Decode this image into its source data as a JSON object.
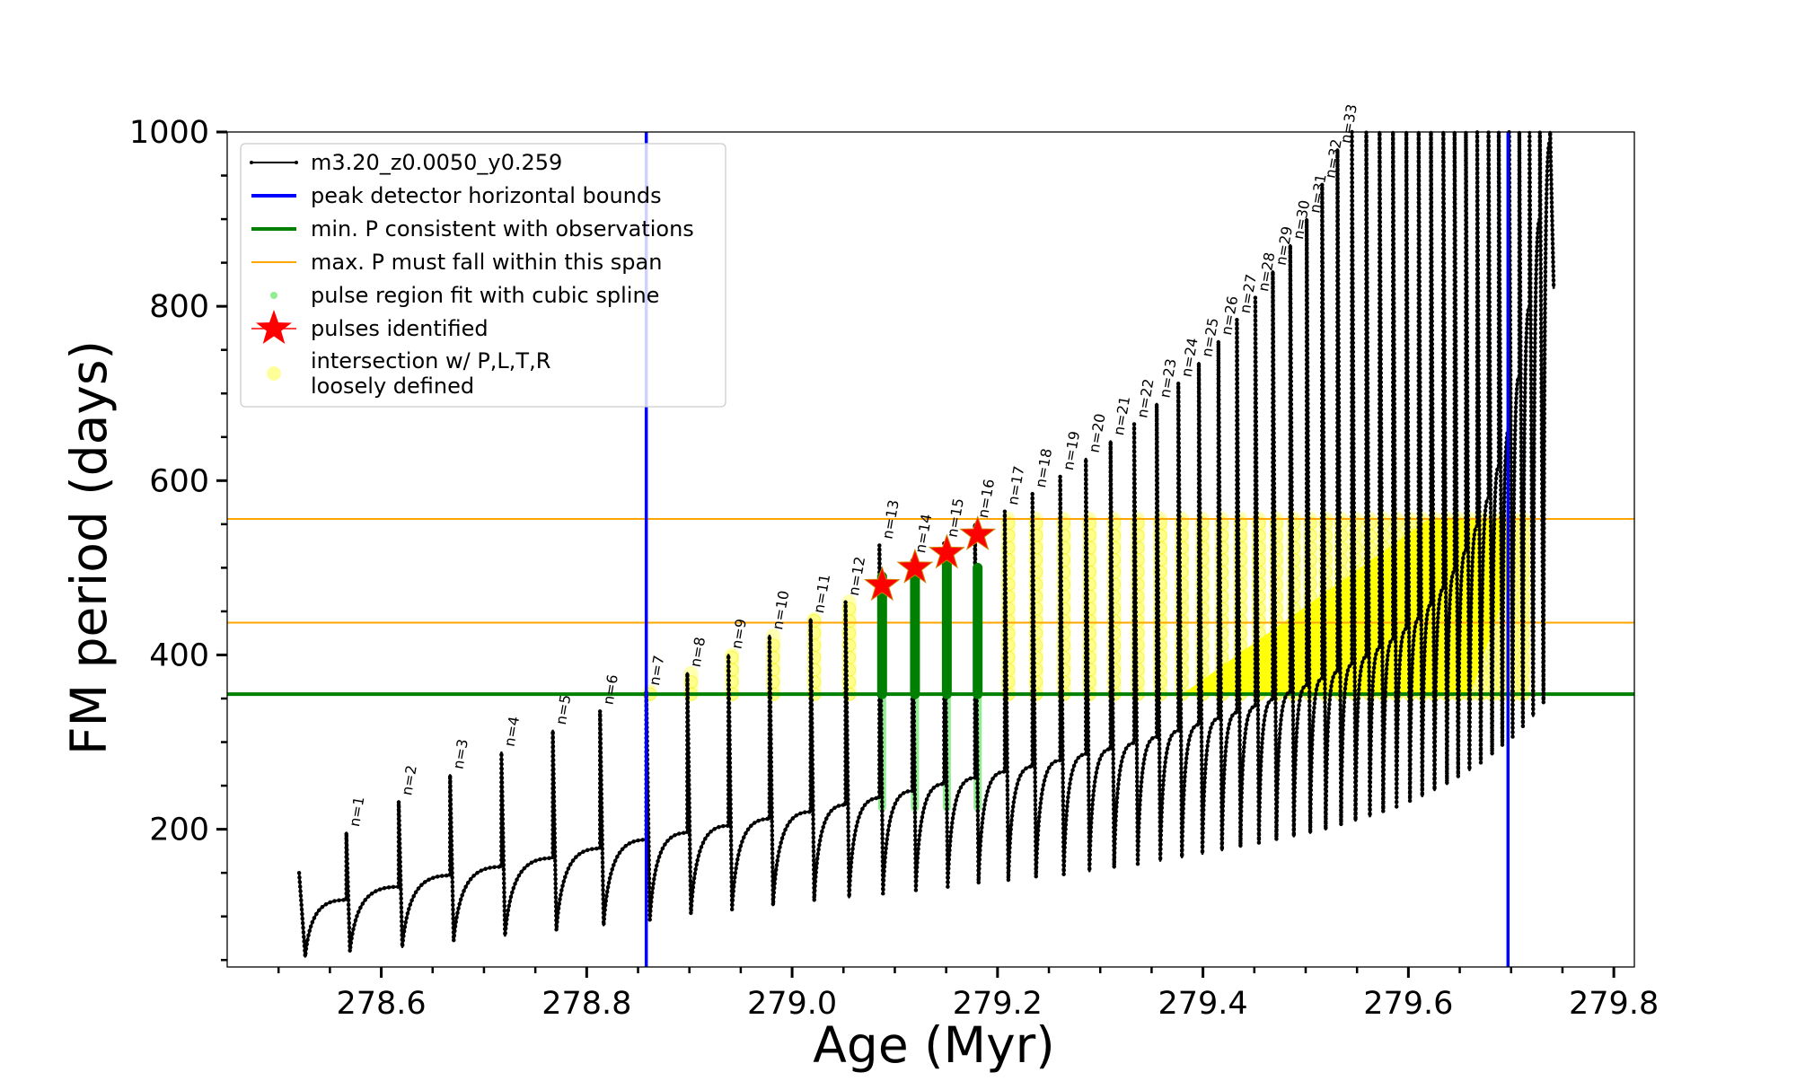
{
  "chart_data": {
    "type": "scatter",
    "title": "",
    "xlabel": "Age (Myr)",
    "ylabel": "FM period (days)",
    "xlim": [
      278.45,
      279.82
    ],
    "ylim": [
      42,
      1000
    ],
    "x_ticks": [
      278.6,
      278.8,
      279.0,
      279.2,
      279.4,
      279.6,
      279.8
    ],
    "x_tick_labels": [
      "278.6",
      "278.8",
      "279.0",
      "279.2",
      "279.4",
      "279.6",
      "279.8"
    ],
    "y_ticks": [
      200,
      400,
      600,
      800,
      1000
    ],
    "y_tick_labels": [
      "200",
      "400",
      "600",
      "800",
      "1000"
    ],
    "grid": false,
    "legend_position": "top-left",
    "legend": [
      {
        "label": "m3.20_z0.0050_y0.259",
        "marker": "line-dot",
        "color": "#000000"
      },
      {
        "label": "peak detector horizontal bounds",
        "marker": "line",
        "color": "#0000ff"
      },
      {
        "label": "min. P consistent with observations",
        "marker": "line",
        "color": "#008000"
      },
      {
        "label": "max. P must fall within this span",
        "marker": "thin-line",
        "color": "#ffa500"
      },
      {
        "label": "pulse region fit with cubic spline",
        "marker": "dot",
        "color": "#90ee90"
      },
      {
        "label": "pulses identified",
        "marker": "star",
        "color": "#ff0000"
      },
      {
        "label": "intersection w/ P,L,T,R",
        "label2": "loosely defined",
        "marker": "big-dot",
        "color": "#ffff99"
      }
    ],
    "vertical_lines": [
      {
        "x": 278.858,
        "color": "#0000ff",
        "series": "peak detector horizontal bounds"
      },
      {
        "x": 279.697,
        "color": "#0000ff",
        "series": "peak detector horizontal bounds"
      }
    ],
    "horizontal_lines": [
      {
        "y": 355,
        "color": "#008000",
        "series": "min. P consistent with observations"
      },
      {
        "y": 437,
        "color": "#ffa500",
        "series": "max. P must fall within this span"
      },
      {
        "y": 556,
        "color": "#ffa500",
        "series": "max. P must fall within this span"
      }
    ],
    "pulses": [
      {
        "n": 1,
        "label": "n=1",
        "x": 278.566,
        "peak": 196,
        "pre": 119,
        "base": 60
      },
      {
        "n": 2,
        "label": "n=2",
        "x": 278.617,
        "peak": 232,
        "pre": 134,
        "base": 65
      },
      {
        "n": 3,
        "label": "n=3",
        "x": 278.667,
        "peak": 262,
        "pre": 147,
        "base": 72
      },
      {
        "n": 4,
        "label": "n=4",
        "x": 278.717,
        "peak": 288,
        "pre": 157,
        "base": 78
      },
      {
        "n": 5,
        "label": "n=5",
        "x": 278.767,
        "peak": 313,
        "pre": 167,
        "base": 84
      },
      {
        "n": 6,
        "label": "n=6",
        "x": 278.813,
        "peak": 336,
        "pre": 178,
        "base": 90
      },
      {
        "n": 7,
        "label": "n=7",
        "x": 278.858,
        "peak": 358,
        "pre": 188,
        "base": 96
      },
      {
        "n": 8,
        "label": "n=8",
        "x": 278.898,
        "peak": 379,
        "pre": 196,
        "base": 103
      },
      {
        "n": 9,
        "label": "n=9",
        "x": 278.938,
        "peak": 400,
        "pre": 204,
        "base": 108
      },
      {
        "n": 10,
        "label": "n=10",
        "x": 278.978,
        "peak": 422,
        "pre": 212,
        "base": 113
      },
      {
        "n": 11,
        "label": "n=11",
        "x": 279.018,
        "peak": 441,
        "pre": 220,
        "base": 118
      },
      {
        "n": 12,
        "label": "n=12",
        "x": 279.052,
        "peak": 461,
        "pre": 228,
        "base": 122
      },
      {
        "n": 13,
        "label": "n=13",
        "x": 279.085,
        "peak": 526,
        "pre": 236,
        "base": 126
      },
      {
        "n": 14,
        "label": "n=14",
        "x": 279.117,
        "peak": 510,
        "pre": 244,
        "base": 130
      },
      {
        "n": 15,
        "label": "n=15",
        "x": 279.148,
        "peak": 528,
        "pre": 252,
        "base": 134
      },
      {
        "n": 16,
        "label": "n=16",
        "x": 279.178,
        "peak": 550,
        "pre": 259,
        "base": 138
      },
      {
        "n": 17,
        "label": "n=17",
        "x": 279.207,
        "peak": 565,
        "pre": 266,
        "base": 141
      },
      {
        "n": 18,
        "label": "n=18",
        "x": 279.234,
        "peak": 585,
        "pre": 272,
        "base": 145
      },
      {
        "n": 19,
        "label": "n=19",
        "x": 279.261,
        "peak": 605,
        "pre": 279,
        "base": 148
      },
      {
        "n": 20,
        "label": "n=20",
        "x": 279.286,
        "peak": 625,
        "pre": 286,
        "base": 152
      },
      {
        "n": 21,
        "label": "n=21",
        "x": 279.31,
        "peak": 645,
        "pre": 292,
        "base": 156
      },
      {
        "n": 22,
        "label": "n=22",
        "x": 279.333,
        "peak": 665,
        "pre": 299,
        "base": 160
      },
      {
        "n": 23,
        "label": "n=23",
        "x": 279.355,
        "peak": 688,
        "pre": 306,
        "base": 164
      },
      {
        "n": 24,
        "label": "n=24",
        "x": 279.376,
        "peak": 712,
        "pre": 313,
        "base": 168
      },
      {
        "n": 25,
        "label": "n=25",
        "x": 279.396,
        "peak": 735,
        "pre": 320,
        "base": 172
      },
      {
        "n": 26,
        "label": "n=26",
        "x": 279.415,
        "peak": 760,
        "pre": 327,
        "base": 176
      },
      {
        "n": 27,
        "label": "n=27",
        "x": 279.433,
        "peak": 785,
        "pre": 334,
        "base": 180
      },
      {
        "n": 28,
        "label": "n=28",
        "x": 279.451,
        "peak": 810,
        "pre": 341,
        "base": 184
      },
      {
        "n": 29,
        "label": "n=29",
        "x": 279.468,
        "peak": 840,
        "pre": 349,
        "base": 188
      },
      {
        "n": 30,
        "label": "n=30",
        "x": 279.485,
        "peak": 870,
        "pre": 357,
        "base": 192
      },
      {
        "n": 31,
        "label": "n=31",
        "x": 279.501,
        "peak": 900,
        "pre": 365,
        "base": 196
      },
      {
        "n": 32,
        "label": "n=32",
        "x": 279.516,
        "peak": 940,
        "pre": 373,
        "base": 200
      },
      {
        "n": 33,
        "label": "n=33",
        "x": 279.531,
        "peak": 980,
        "pre": 381,
        "base": 205
      },
      {
        "n": 34,
        "label": "",
        "x": 279.545,
        "peak": 1000,
        "pre": 389,
        "base": 210
      },
      {
        "n": 35,
        "label": "",
        "x": 279.559,
        "peak": 1000,
        "pre": 398,
        "base": 215
      },
      {
        "n": 36,
        "label": "",
        "x": 279.572,
        "peak": 1000,
        "pre": 408,
        "base": 220
      },
      {
        "n": 37,
        "label": "",
        "x": 279.585,
        "peak": 1000,
        "pre": 418,
        "base": 226
      },
      {
        "n": 38,
        "label": "",
        "x": 279.598,
        "peak": 1000,
        "pre": 430,
        "base": 232
      },
      {
        "n": 39,
        "label": "",
        "x": 279.61,
        "peak": 1000,
        "pre": 442,
        "base": 238
      },
      {
        "n": 40,
        "label": "",
        "x": 279.622,
        "peak": 1000,
        "pre": 458,
        "base": 245
      },
      {
        "n": 41,
        "label": "",
        "x": 279.634,
        "peak": 1000,
        "pre": 476,
        "base": 252
      },
      {
        "n": 42,
        "label": "",
        "x": 279.645,
        "peak": 1000,
        "pre": 496,
        "base": 260
      },
      {
        "n": 43,
        "label": "",
        "x": 279.656,
        "peak": 1000,
        "pre": 520,
        "base": 268
      },
      {
        "n": 44,
        "label": "",
        "x": 279.667,
        "peak": 1000,
        "pre": 548,
        "base": 276
      },
      {
        "n": 45,
        "label": "",
        "x": 279.678,
        "peak": 1000,
        "pre": 580,
        "base": 286
      },
      {
        "n": 46,
        "label": "",
        "x": 279.688,
        "peak": 1000,
        "pre": 616,
        "base": 296
      },
      {
        "n": 47,
        "label": "",
        "x": 279.698,
        "peak": 1000,
        "pre": 660,
        "base": 306
      },
      {
        "n": 48,
        "label": "",
        "x": 279.708,
        "peak": 1000,
        "pre": 720,
        "base": 318
      },
      {
        "n": 49,
        "label": "",
        "x": 279.718,
        "peak": 1000,
        "pre": 800,
        "base": 330
      },
      {
        "n": 50,
        "label": "",
        "x": 279.728,
        "peak": 1000,
        "pre": 900,
        "base": 345
      },
      {
        "n": 51,
        "label": "",
        "x": 279.738,
        "peak": 1000,
        "pre": 990,
        "base": 820
      }
    ],
    "track_start": {
      "x": 278.52,
      "y": 150
    },
    "track_start_base": {
      "x": 278.526,
      "y": 54
    },
    "track_end": {
      "x": 279.738,
      "y": 1000
    },
    "pulses_identified": [
      {
        "n": 13,
        "x": 279.085,
        "y": 480
      },
      {
        "n": 14,
        "x": 279.117,
        "y": 500
      },
      {
        "n": 15,
        "x": 279.148,
        "y": 517
      },
      {
        "n": 16,
        "x": 279.178,
        "y": 538
      }
    ],
    "spline_fit_pulses": [
      {
        "n": 13,
        "x": 279.085,
        "ymin": 225,
        "ymax": 490
      },
      {
        "n": 14,
        "x": 279.117,
        "ymin": 225,
        "ymax": 500
      },
      {
        "n": 15,
        "x": 279.148,
        "ymin": 225,
        "ymax": 505
      },
      {
        "n": 16,
        "x": 279.178,
        "ymin": 225,
        "ymax": 500
      }
    ],
    "yellow_region": {
      "columns_pulse_range": [
        7,
        48
      ],
      "ymin": 355,
      "ymax": 556,
      "dense_wedge": [
        [
          279.38,
          355
        ],
        [
          279.62,
          556
        ],
        [
          279.697,
          556
        ],
        [
          279.697,
          480
        ],
        [
          279.66,
          355
        ]
      ]
    }
  }
}
